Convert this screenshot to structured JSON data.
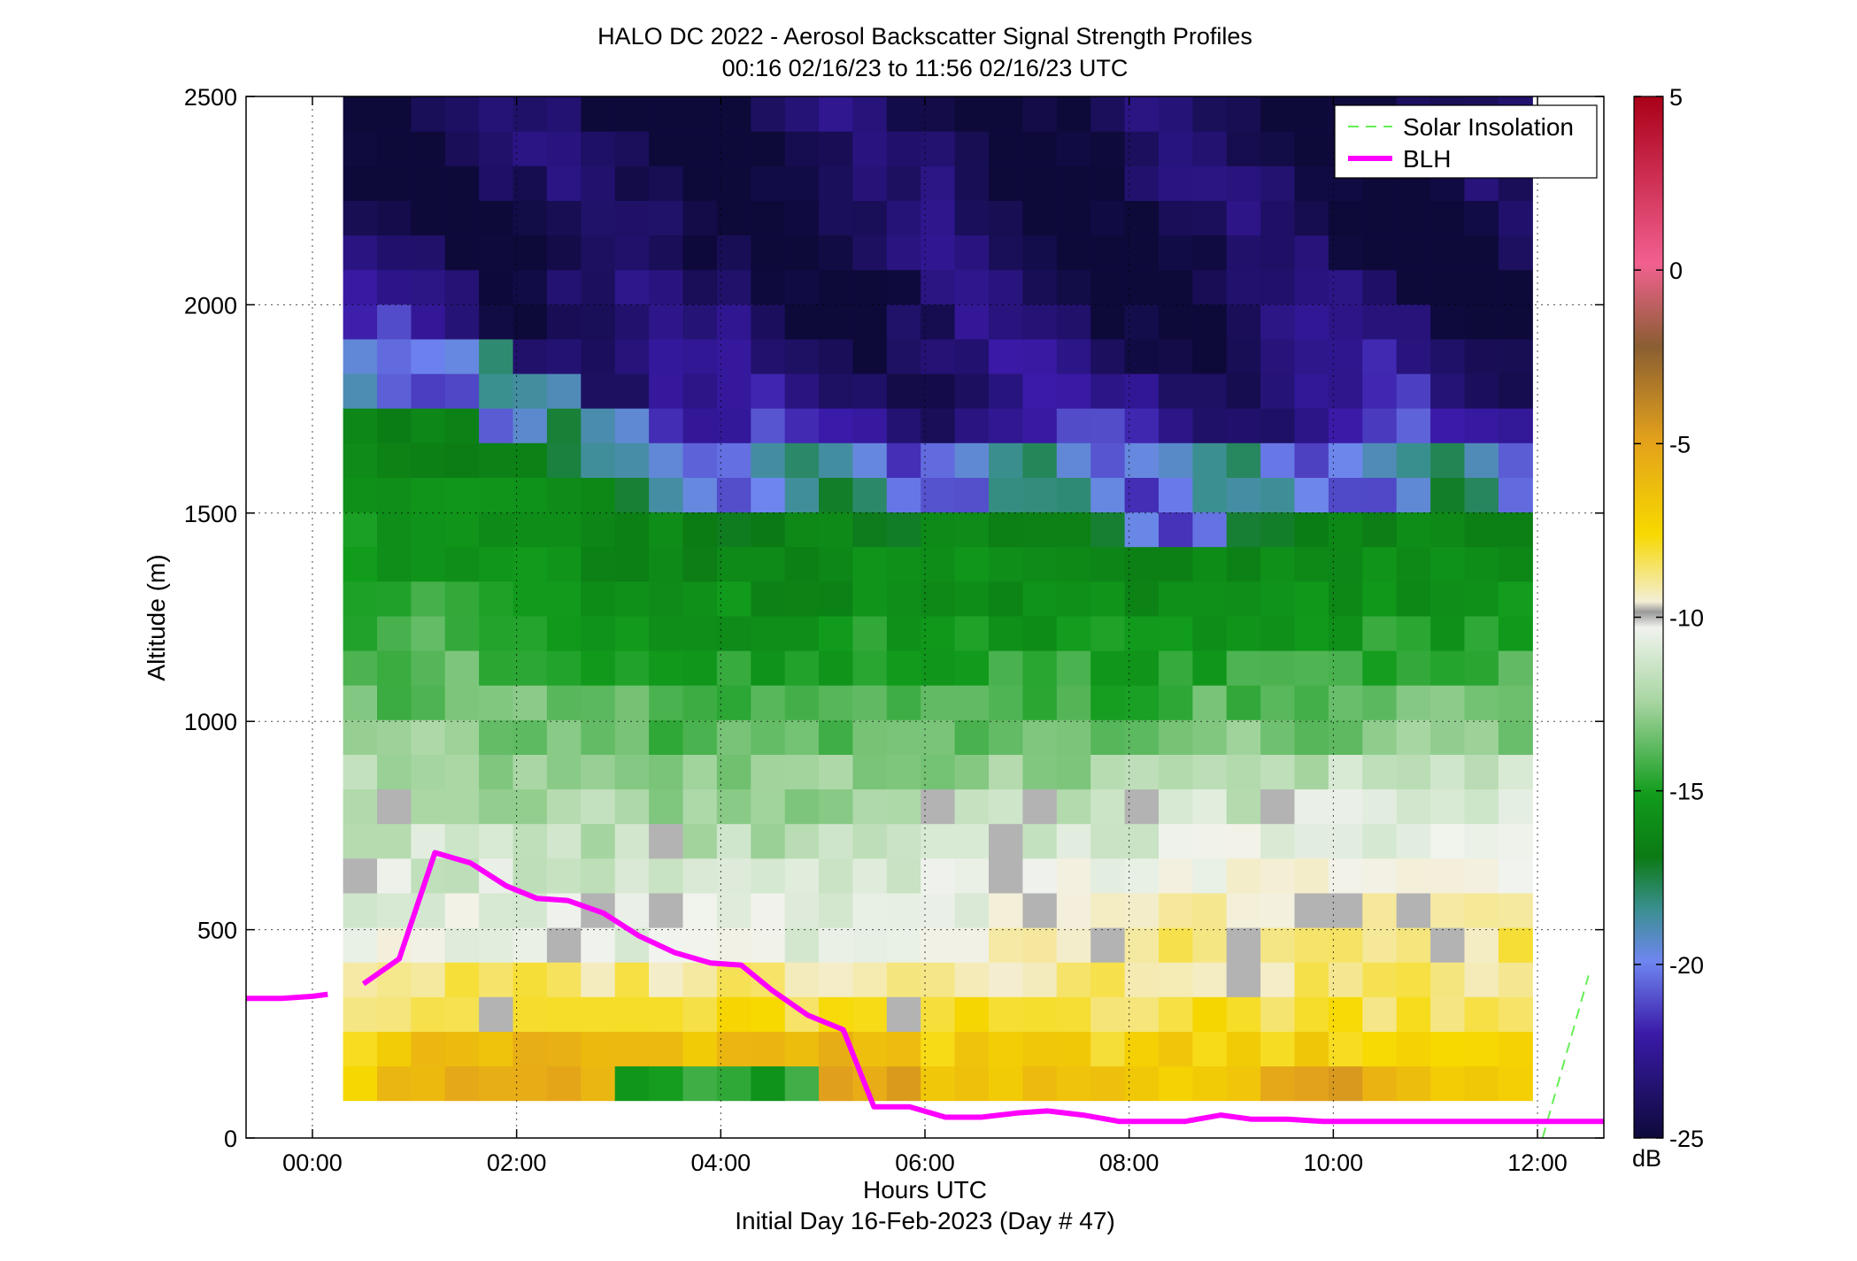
{
  "chart_data": {
    "type": "heatmap",
    "title": "HALO DC 2022 - Aerosol Backscatter Signal Strength Profiles",
    "subtitle": "00:16 02/16/23 to 11:56 02/16/23  UTC",
    "xlabel": "Hours UTC",
    "xlabel2": "Initial Day 16-Feb-2023 (Day # 47)",
    "ylabel": "Altitude (m)",
    "xlim": [
      -0.65,
      12.65
    ],
    "ylim": [
      0,
      2500
    ],
    "x_ticks": [
      0,
      2,
      4,
      6,
      8,
      10,
      12
    ],
    "x_tick_labels": [
      "00:00",
      "02:00",
      "04:00",
      "06:00",
      "08:00",
      "10:00",
      "12:00"
    ],
    "y_ticks": [
      0,
      500,
      1000,
      1500,
      2000,
      2500
    ],
    "y_tick_labels": [
      "0",
      "500",
      "1000",
      "1500",
      "2000",
      "2500"
    ],
    "grid": true,
    "legend_position": "top-right",
    "colorbar": {
      "unit": "dB",
      "range": [
        -25,
        5
      ],
      "ticks": [
        5,
        0,
        -5,
        -10,
        -15,
        -20,
        -25
      ],
      "tick_labels": [
        "5",
        "0",
        "-5",
        "-10",
        "-15",
        "-20",
        "-25"
      ]
    },
    "heatmap": {
      "x_start": 0.3,
      "x_end": 11.95,
      "y_start": 90,
      "y_end": 2500,
      "columns": 35,
      "rows": 29
    },
    "series": [
      {
        "name": "Solar Insolation",
        "style": "dashed",
        "color": "#66ee55",
        "x": [
          12.05,
          12.5
        ],
        "y": [
          0,
          390
        ]
      },
      {
        "name": "BLH",
        "style": "solid",
        "color": "#ff00ff",
        "segments": [
          {
            "x": [
              -0.65,
              -0.3,
              0,
              0.15
            ],
            "y": [
              335,
              335,
              340,
              345
            ]
          },
          {
            "x": [
              0.5,
              0.85,
              1.2,
              1.55,
              1.9,
              2.2,
              2.5,
              2.85,
              3.2,
              3.55,
              3.9,
              4.2,
              4.5,
              4.85,
              5.2,
              5.5,
              5.85,
              6.2,
              6.55,
              6.9,
              7.2,
              7.55,
              7.9,
              8.2,
              8.55,
              8.9,
              9.2,
              9.55,
              9.9,
              10.25,
              10.55,
              10.9,
              11.25,
              11.6,
              11.95,
              12.3,
              12.65
            ]
          },
          {
            "y_note": "values below"
          }
        ],
        "x": [
          0.5,
          0.85,
          1.2,
          1.55,
          1.9,
          2.2,
          2.5,
          2.85,
          3.2,
          3.55,
          3.9,
          4.2,
          4.5,
          4.85,
          5.2,
          5.5,
          5.85,
          6.2,
          6.55,
          6.9,
          7.2,
          7.55,
          7.9,
          8.2,
          8.55,
          8.9,
          9.2,
          9.55,
          9.9,
          10.25,
          10.55,
          10.9,
          11.25,
          11.6,
          11.95,
          12.3,
          12.65
        ],
        "y": [
          370,
          430,
          685,
          660,
          605,
          575,
          570,
          540,
          485,
          445,
          420,
          415,
          355,
          295,
          260,
          75,
          75,
          50,
          50,
          60,
          65,
          55,
          40,
          40,
          40,
          55,
          45,
          45,
          40,
          40,
          40,
          40,
          40,
          40,
          40,
          40,
          40
        ]
      }
    ]
  }
}
